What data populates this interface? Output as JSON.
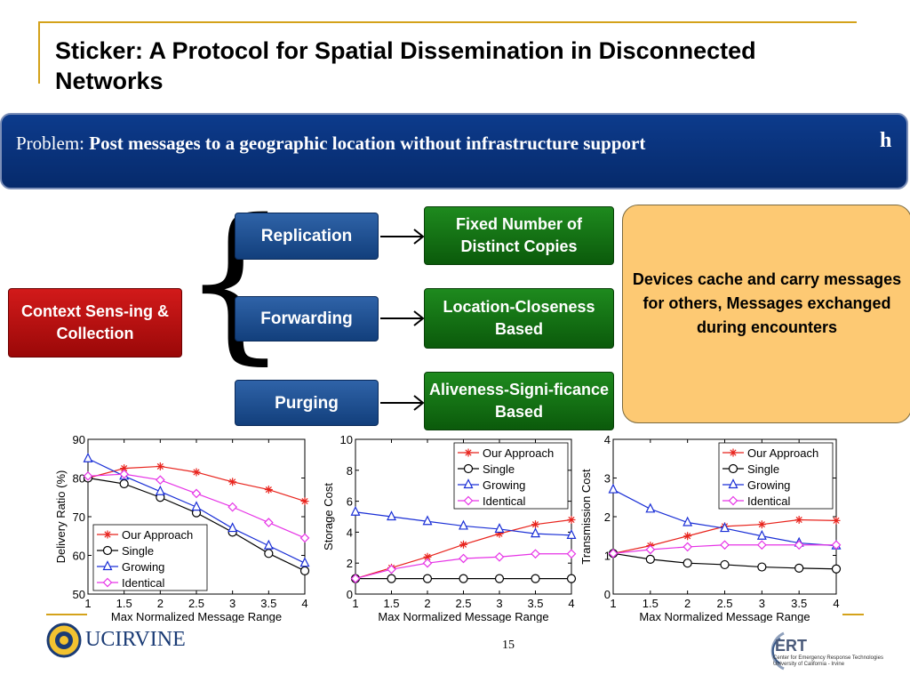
{
  "slide": {
    "title": "Sticker: A Protocol for Spatial Dissemination in Disconnected Networks",
    "problem_label": "Problem:",
    "problem_text": "Post messages to a geographic location without infrastructure support",
    "problem_suffix": "h",
    "page_number": "15"
  },
  "diagram": {
    "context": "Context Sens-ing & Collection",
    "replication": "Replication",
    "forwarding": "Forwarding",
    "purging": "Purging",
    "fixed": "Fixed Number of Distinct Copies",
    "location": "Location-Closeness Based",
    "aliveness": "Aliveness-Signi-ficance Based",
    "devices": "Devices cache and carry messages for others, Messages exchanged during encounters"
  },
  "logos": {
    "uci": "UCIRVINE",
    "ert": "ERT",
    "ert_sub1": "Center for Emergency Response Technologies",
    "ert_sub2": "University of California - Irvine"
  },
  "colors": {
    "our": "#e8231c",
    "single": "#000000",
    "growing": "#1a2fd6",
    "identical": "#e633e6"
  },
  "chart_data": [
    {
      "type": "line",
      "xlabel": "Max Normalized Message Range",
      "ylabel": "Delivery Ratio (%)",
      "xlim": [
        1,
        4
      ],
      "ylim": [
        50,
        90
      ],
      "xticks": [
        1,
        1.5,
        2,
        2.5,
        3,
        3.5,
        4
      ],
      "yticks": [
        50,
        60,
        70,
        80,
        90
      ],
      "x": [
        1,
        1.5,
        2,
        2.5,
        3,
        3.5,
        4
      ],
      "legend": "bottom-left",
      "series": [
        {
          "name": "Our Approach",
          "values": [
            80,
            82.5,
            83,
            81.5,
            79,
            77,
            74
          ]
        },
        {
          "name": "Single",
          "values": [
            80,
            78.5,
            75,
            71,
            66,
            60.5,
            56
          ]
        },
        {
          "name": "Growing",
          "values": [
            85,
            80.5,
            76.5,
            72.5,
            67,
            62.5,
            58
          ]
        },
        {
          "name": "Identical",
          "values": [
            80.5,
            81,
            79.5,
            76,
            72.5,
            68.5,
            64.5
          ]
        }
      ]
    },
    {
      "type": "line",
      "xlabel": "Max Normalized Message Range",
      "ylabel": "Storage Cost",
      "xlim": [
        1,
        4
      ],
      "ylim": [
        0,
        10
      ],
      "xticks": [
        1,
        1.5,
        2,
        2.5,
        3,
        3.5,
        4
      ],
      "yticks": [
        0,
        2,
        4,
        6,
        8,
        10
      ],
      "x": [
        1,
        1.5,
        2,
        2.5,
        3,
        3.5,
        4
      ],
      "legend": "top-right",
      "series": [
        {
          "name": "Our Approach",
          "values": [
            1.0,
            1.7,
            2.4,
            3.2,
            3.9,
            4.5,
            4.8
          ]
        },
        {
          "name": "Single",
          "values": [
            1.0,
            1.0,
            1.0,
            1.0,
            1.0,
            1.0,
            1.0
          ]
        },
        {
          "name": "Growing",
          "values": [
            5.3,
            5.0,
            4.7,
            4.4,
            4.2,
            3.9,
            3.8
          ]
        },
        {
          "name": "Identical",
          "values": [
            1.0,
            1.6,
            2.0,
            2.3,
            2.4,
            2.6,
            2.6
          ]
        }
      ]
    },
    {
      "type": "line",
      "xlabel": "Max Normalized Message Range",
      "ylabel": "Transmission Cost",
      "xlim": [
        1,
        4
      ],
      "ylim": [
        0,
        4
      ],
      "xticks": [
        1,
        1.5,
        2,
        2.5,
        3,
        3.5,
        4
      ],
      "yticks": [
        0,
        1,
        2,
        3,
        4
      ],
      "x": [
        1,
        1.5,
        2,
        2.5,
        3,
        3.5,
        4
      ],
      "legend": "top-right",
      "series": [
        {
          "name": "Our Approach",
          "values": [
            1.05,
            1.25,
            1.5,
            1.75,
            1.8,
            1.92,
            1.9
          ]
        },
        {
          "name": "Single",
          "values": [
            1.05,
            0.9,
            0.8,
            0.76,
            0.7,
            0.67,
            0.65
          ]
        },
        {
          "name": "Growing",
          "values": [
            2.7,
            2.2,
            1.85,
            1.7,
            1.5,
            1.32,
            1.25
          ]
        },
        {
          "name": "Identical",
          "values": [
            1.05,
            1.15,
            1.22,
            1.27,
            1.27,
            1.27,
            1.27
          ]
        }
      ]
    }
  ]
}
